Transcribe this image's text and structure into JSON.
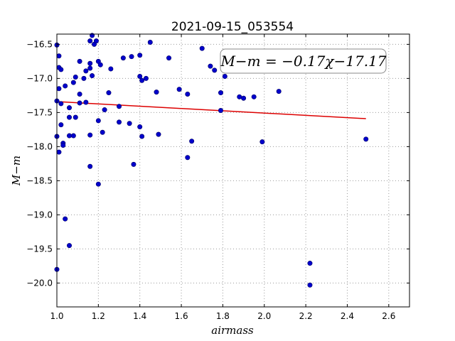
{
  "chart_data": {
    "type": "scatter",
    "title": "2021-09-15_053554",
    "xlabel": "airmass",
    "ylabel": "M−m",
    "xlim": [
      1.0,
      2.7
    ],
    "ylim": [
      -16.35,
      -20.35
    ],
    "y_inverted": true,
    "grid": true,
    "x_ticks": [
      "1.0",
      "1.2",
      "1.4",
      "1.6",
      "1.8",
      "2.0",
      "2.2",
      "2.4",
      "2.6"
    ],
    "y_ticks": [
      "−16.5",
      "−17.0",
      "−17.5",
      "−18.0",
      "−18.5",
      "−19.0",
      "−19.5",
      "−20.0"
    ],
    "annotation": "M−m = −0.17χ−17.17",
    "colors": {
      "points": "#0000cc",
      "fit": "#dd0000",
      "grid": "#999999"
    },
    "series": [
      {
        "type": "scatter",
        "points": [
          [
            1.0,
            -16.51
          ],
          [
            1.01,
            -16.67
          ],
          [
            1.01,
            -16.84
          ],
          [
            1.02,
            -16.87
          ],
          [
            1.0,
            -17.33
          ],
          [
            1.02,
            -17.37
          ],
          [
            1.01,
            -17.15
          ],
          [
            1.04,
            -17.11
          ],
          [
            1.02,
            -17.68
          ],
          [
            1.0,
            -17.85
          ],
          [
            1.03,
            -17.95
          ],
          [
            1.03,
            -17.98
          ],
          [
            1.01,
            -18.08
          ],
          [
            1.06,
            -17.43
          ],
          [
            1.06,
            -17.57
          ],
          [
            1.06,
            -17.84
          ],
          [
            1.08,
            -17.84
          ],
          [
            1.08,
            -17.06
          ],
          [
            1.09,
            -16.98
          ],
          [
            1.09,
            -17.57
          ],
          [
            1.11,
            -16.75
          ],
          [
            1.11,
            -17.23
          ],
          [
            1.11,
            -17.36
          ],
          [
            1.13,
            -17.0
          ],
          [
            1.14,
            -17.35
          ],
          [
            1.14,
            -16.89
          ],
          [
            1.16,
            -16.78
          ],
          [
            1.16,
            -16.85
          ],
          [
            1.16,
            -16.45
          ],
          [
            1.17,
            -16.37
          ],
          [
            1.17,
            -16.96
          ],
          [
            1.18,
            -16.5
          ],
          [
            1.19,
            -16.45
          ],
          [
            1.2,
            -16.75
          ],
          [
            1.21,
            -16.8
          ],
          [
            1.16,
            -17.83
          ],
          [
            1.16,
            -18.29
          ],
          [
            1.2,
            -17.62
          ],
          [
            1.22,
            -17.79
          ],
          [
            1.23,
            -17.46
          ],
          [
            1.25,
            -17.21
          ],
          [
            1.26,
            -16.86
          ],
          [
            1.2,
            -18.55
          ],
          [
            1.04,
            -19.06
          ],
          [
            1.06,
            -19.45
          ],
          [
            1.0,
            -19.8
          ],
          [
            1.3,
            -17.41
          ],
          [
            1.3,
            -17.64
          ],
          [
            1.32,
            -16.7
          ],
          [
            1.35,
            -17.66
          ],
          [
            1.36,
            -16.68
          ],
          [
            1.37,
            -18.26
          ],
          [
            1.4,
            -17.71
          ],
          [
            1.4,
            -16.66
          ],
          [
            1.4,
            -16.97
          ],
          [
            1.41,
            -17.03
          ],
          [
            1.41,
            -17.85
          ],
          [
            1.43,
            -17.0
          ],
          [
            1.45,
            -16.47
          ],
          [
            1.48,
            -17.2
          ],
          [
            1.49,
            -17.82
          ],
          [
            1.54,
            -16.7
          ],
          [
            1.59,
            -17.16
          ],
          [
            1.63,
            -17.23
          ],
          [
            1.63,
            -18.16
          ],
          [
            1.65,
            -17.92
          ],
          [
            1.7,
            -16.56
          ],
          [
            1.74,
            -16.82
          ],
          [
            1.76,
            -16.88
          ],
          [
            1.79,
            -17.21
          ],
          [
            1.79,
            -17.47
          ],
          [
            1.81,
            -16.97
          ],
          [
            1.88,
            -17.27
          ],
          [
            1.9,
            -17.29
          ],
          [
            1.95,
            -17.27
          ],
          [
            1.99,
            -17.93
          ],
          [
            2.07,
            -17.19
          ],
          [
            2.22,
            -19.71
          ],
          [
            2.22,
            -20.03
          ],
          [
            2.49,
            -17.89
          ]
        ]
      },
      {
        "type": "line",
        "name": "fit",
        "x": [
          1.0,
          2.49
        ],
        "y": [
          -17.34,
          -17.59
        ]
      }
    ]
  }
}
